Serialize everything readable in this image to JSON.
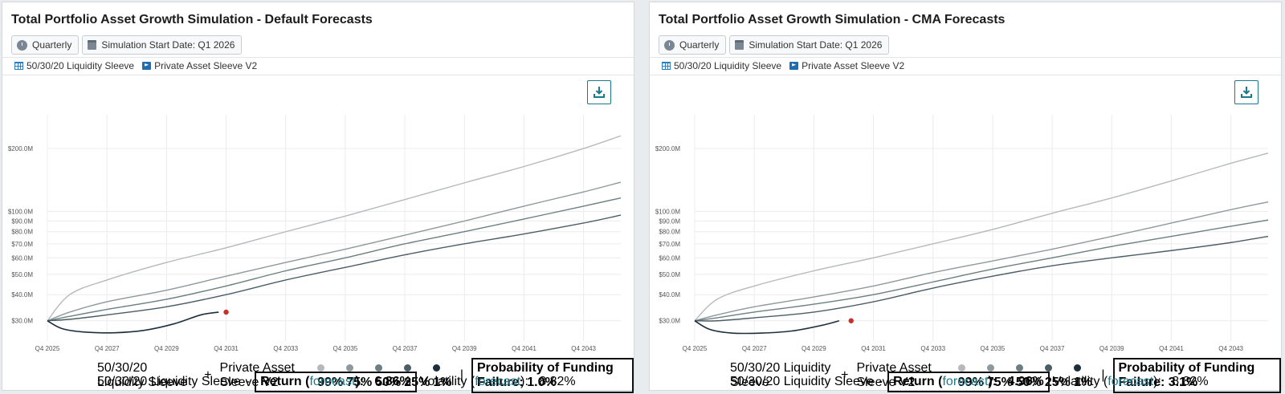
{
  "panels": [
    {
      "title": "Total Portfolio Asset Growth Simulation - Default Forecasts",
      "frequency": "Quarterly",
      "start_date": "Simulation Start Date: Q1 2026",
      "sleeve_a": "50/30/20 Liquidity Sleeve",
      "sleeve_b": "Private Asset Sleeve V2",
      "legend": {
        "sleeve_a": "50/30/20 Liquidity Sleeve",
        "plus": "+",
        "sleeve_b": "Private Asset Sleeve V2",
        "p99": "99%",
        "p75": "75%",
        "p50": "50%",
        "p25": "25%",
        "p1": "1%",
        "sep": "|",
        "pff": "Probability of Funding Failure: 1.0%",
        "sleeve_a2": "50/30/20 Liquidity Sleeve",
        "dash": "-",
        "return_label": "Return",
        "forecast": "forecast",
        "return_value": "6.86%",
        "vol_label": "Volatility",
        "vol_value": "8.82%"
      }
    },
    {
      "title": "Total Portfolio Asset Growth Simulation - CMA Forecasts",
      "frequency": "Quarterly",
      "start_date": "Simulation Start Date: Q1 2026",
      "sleeve_a": "50/30/20 Liquidity Sleeve",
      "sleeve_b": "Private Asset Sleeve V2",
      "legend": {
        "sleeve_a": "50/30/20 Liquidity Sleeve",
        "plus": "+",
        "sleeve_b": "Private Asset Sleeve V2",
        "p99": "99%",
        "p75": "75%",
        "p50": "50%",
        "p25": "25%",
        "p1": "1%",
        "sep": "|",
        "pff": "Probability of Funding Failure: 3.1%",
        "sleeve_a2": "50/30/20 Liquidity Sleeve",
        "dash": "-",
        "return_label": "Return",
        "forecast": "forecast",
        "return_value": "4.96%",
        "vol_label": "Volatility",
        "vol_value": "8.82%"
      }
    }
  ],
  "colors": {
    "p99": "#b5b9bd",
    "p75": "#8e999d",
    "p50": "#6b7f83",
    "p25": "#4b5e66",
    "p1": "#1d2f3d",
    "failure_dot": "#c8302b",
    "accent": "#1a7a8c"
  },
  "chart_data": [
    {
      "type": "line",
      "y_scale": "log",
      "x_ticks": [
        "Q4 2025",
        "Q4 2027",
        "Q4 2029",
        "Q4 2031",
        "Q4 2033",
        "Q4 2035",
        "Q4 2037",
        "Q4 2039",
        "Q4 2041",
        "Q4 2043"
      ],
      "y_ticks": [
        {
          "v": 30,
          "label": "$30.0M"
        },
        {
          "v": 40,
          "label": "$40.0M"
        },
        {
          "v": 50,
          "label": "$50.0M"
        },
        {
          "v": 60,
          "label": "$60.0M"
        },
        {
          "v": 70,
          "label": "$70.0M"
        },
        {
          "v": 80,
          "label": "$80.0M"
        },
        {
          "v": 90,
          "label": "$90.0M"
        },
        {
          "v": 100,
          "label": "$100.0M"
        },
        {
          "v": 200,
          "label": "$200.0M"
        }
      ],
      "series": [
        {
          "name": "99%",
          "x": [
            2025.75,
            2026.5,
            2027.75,
            2029.75,
            2031.75,
            2033.75,
            2035.75,
            2037.75,
            2039.75,
            2041.75,
            2043.75,
            2045.0
          ],
          "y": [
            30,
            40,
            47,
            57,
            67,
            80,
            95,
            114,
            137,
            164,
            200,
            230
          ]
        },
        {
          "name": "75%",
          "x": [
            2025.75,
            2026.5,
            2027.75,
            2029.75,
            2031.75,
            2033.75,
            2035.75,
            2037.75,
            2039.75,
            2041.75,
            2043.75,
            2045.0
          ],
          "y": [
            30,
            33,
            37,
            42,
            49,
            57,
            66,
            77,
            90,
            106,
            124,
            138
          ]
        },
        {
          "name": "50%",
          "x": [
            2025.75,
            2026.5,
            2027.75,
            2029.75,
            2031.75,
            2033.75,
            2035.75,
            2037.75,
            2039.75,
            2041.75,
            2043.75,
            2045.0
          ],
          "y": [
            30,
            31.5,
            34,
            38,
            44,
            52,
            60,
            70,
            80,
            92,
            106,
            116
          ]
        },
        {
          "name": "25%",
          "x": [
            2025.75,
            2026.5,
            2027.75,
            2029.75,
            2031.75,
            2033.75,
            2035.75,
            2037.75,
            2039.75,
            2041.75,
            2043.75,
            2045.0
          ],
          "y": [
            30,
            30.5,
            32,
            35,
            40,
            47,
            54,
            62,
            70,
            78,
            88,
            96
          ]
        },
        {
          "name": "1%",
          "x": [
            2025.75,
            2026.25,
            2027.0,
            2028.0,
            2029.0,
            2030.0,
            2030.9,
            2031.5
          ],
          "y": [
            30,
            27.5,
            26.5,
            26.3,
            27,
            29,
            32,
            33
          ]
        }
      ],
      "failure_point": {
        "x": 2031.75,
        "y": 33
      }
    },
    {
      "type": "line",
      "y_scale": "log",
      "x_ticks": [
        "Q4 2025",
        "Q4 2027",
        "Q4 2029",
        "Q4 2031",
        "Q4 2033",
        "Q4 2035",
        "Q4 2037",
        "Q4 2039",
        "Q4 2041",
        "Q4 2043"
      ],
      "y_ticks": [
        {
          "v": 30,
          "label": "$30.0M"
        },
        {
          "v": 40,
          "label": "$40.0M"
        },
        {
          "v": 50,
          "label": "$50.0M"
        },
        {
          "v": 60,
          "label": "$60.0M"
        },
        {
          "v": 70,
          "label": "$70.0M"
        },
        {
          "v": 80,
          "label": "$80.0M"
        },
        {
          "v": 90,
          "label": "$90.0M"
        },
        {
          "v": 100,
          "label": "$100.0M"
        },
        {
          "v": 200,
          "label": "$200.0M"
        }
      ],
      "series": [
        {
          "name": "99%",
          "x": [
            2025.75,
            2026.5,
            2027.75,
            2029.75,
            2031.75,
            2033.75,
            2035.75,
            2037.75,
            2039.75,
            2041.75,
            2043.75,
            2045.0
          ],
          "y": [
            30,
            38,
            44,
            52,
            60,
            70,
            82,
            98,
            116,
            140,
            170,
            190
          ]
        },
        {
          "name": "75%",
          "x": [
            2025.75,
            2026.5,
            2027.75,
            2029.75,
            2031.75,
            2033.75,
            2035.75,
            2037.75,
            2039.75,
            2041.75,
            2043.75,
            2045.0
          ],
          "y": [
            30,
            32,
            35,
            39,
            44,
            51,
            58,
            66,
            76,
            88,
            102,
            111
          ]
        },
        {
          "name": "50%",
          "x": [
            2025.75,
            2026.5,
            2027.75,
            2029.75,
            2031.75,
            2033.75,
            2035.75,
            2037.75,
            2039.75,
            2041.75,
            2043.75,
            2045.0
          ],
          "y": [
            30,
            31,
            33,
            36,
            40,
            46,
            53,
            60,
            68,
            76,
            85,
            91
          ]
        },
        {
          "name": "25%",
          "x": [
            2025.75,
            2026.5,
            2027.75,
            2029.75,
            2031.75,
            2033.75,
            2035.75,
            2037.75,
            2039.75,
            2041.75,
            2043.75,
            2045.0
          ],
          "y": [
            30,
            30,
            31,
            33,
            37,
            43,
            49,
            55,
            60,
            65,
            71,
            76
          ]
        },
        {
          "name": "1%",
          "x": [
            2025.75,
            2026.25,
            2027.0,
            2028.0,
            2029.0,
            2030.0,
            2030.6
          ],
          "y": [
            30,
            27.3,
            26.2,
            26.2,
            26.8,
            28.5,
            30
          ]
        }
      ],
      "failure_point": {
        "x": 2031.0,
        "y": 30
      }
    }
  ]
}
